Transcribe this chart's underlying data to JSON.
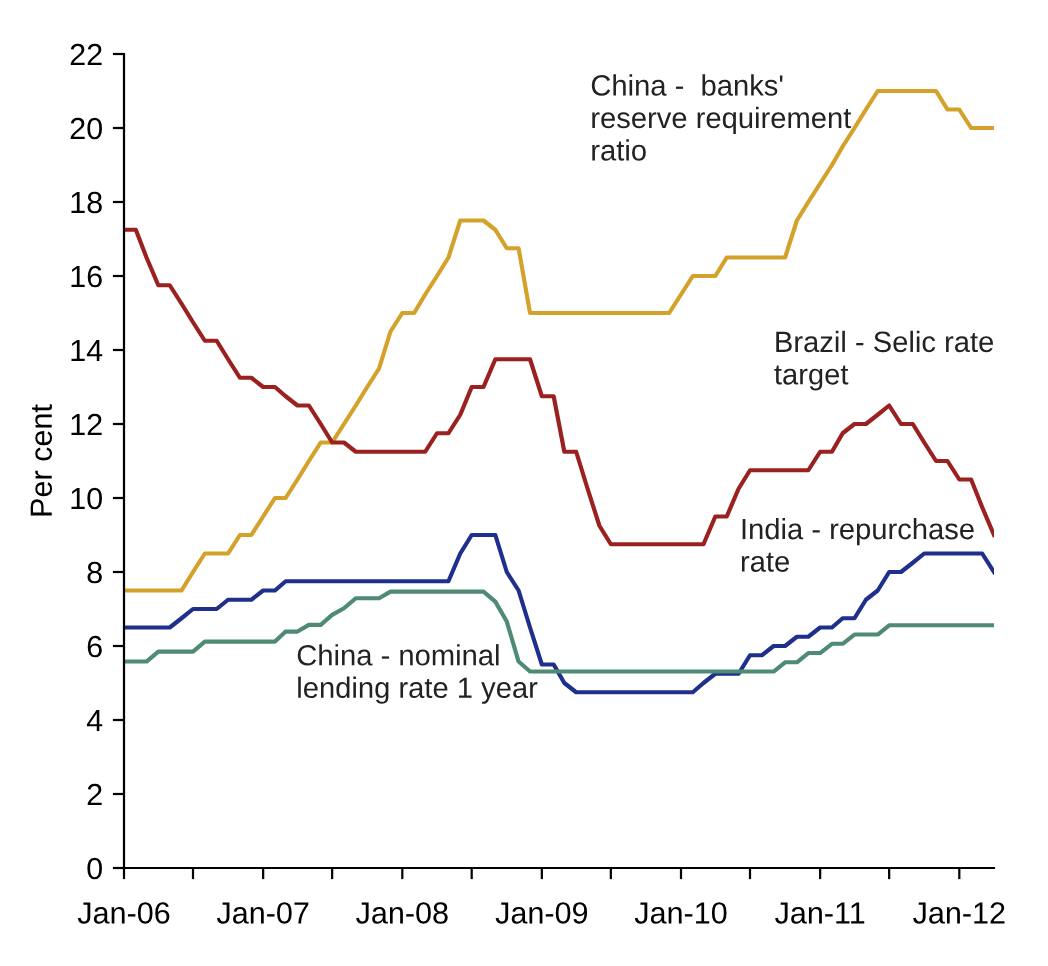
{
  "chart_data": {
    "type": "line",
    "ylabel": "Per cent",
    "x": [
      "2006-01",
      "2006-02",
      "2006-03",
      "2006-04",
      "2006-05",
      "2006-06",
      "2006-07",
      "2006-08",
      "2006-09",
      "2006-10",
      "2006-11",
      "2006-12",
      "2007-01",
      "2007-02",
      "2007-03",
      "2007-04",
      "2007-05",
      "2007-06",
      "2007-07",
      "2007-08",
      "2007-09",
      "2007-10",
      "2007-11",
      "2007-12",
      "2008-01",
      "2008-02",
      "2008-03",
      "2008-04",
      "2008-05",
      "2008-06",
      "2008-07",
      "2008-08",
      "2008-09",
      "2008-10",
      "2008-11",
      "2008-12",
      "2009-01",
      "2009-02",
      "2009-03",
      "2009-04",
      "2009-05",
      "2009-06",
      "2009-07",
      "2009-08",
      "2009-09",
      "2009-10",
      "2009-11",
      "2009-12",
      "2010-01",
      "2010-02",
      "2010-03",
      "2010-04",
      "2010-05",
      "2010-06",
      "2010-07",
      "2010-08",
      "2010-09",
      "2010-10",
      "2010-11",
      "2010-12",
      "2011-01",
      "2011-02",
      "2011-03",
      "2011-04",
      "2011-05",
      "2011-06",
      "2011-07",
      "2011-08",
      "2011-09",
      "2011-10",
      "2011-11",
      "2011-12",
      "2012-01",
      "2012-02",
      "2012-03",
      "2012-04"
    ],
    "series": [
      {
        "name": "China -  banks'\nreserve requirement\nratio",
        "color": "#d4a12a",
        "values": [
          7.5,
          7.5,
          7.5,
          7.5,
          7.5,
          7.5,
          8.0,
          8.5,
          8.5,
          8.5,
          9.0,
          9.0,
          9.5,
          10.0,
          10.0,
          10.5,
          11.0,
          11.5,
          11.5,
          12.0,
          12.5,
          13.0,
          13.5,
          14.5,
          15.0,
          15.0,
          15.5,
          16.0,
          16.5,
          17.5,
          17.5,
          17.5,
          17.25,
          16.75,
          16.75,
          15.0,
          15.0,
          15.0,
          15.0,
          15.0,
          15.0,
          15.0,
          15.0,
          15.0,
          15.0,
          15.0,
          15.0,
          15.0,
          15.5,
          16.0,
          16.0,
          16.0,
          16.5,
          16.5,
          16.5,
          16.5,
          16.5,
          16.5,
          17.5,
          18.0,
          18.5,
          19.0,
          19.5,
          20.0,
          20.5,
          21.0,
          21.0,
          21.0,
          21.0,
          21.0,
          21.0,
          20.5,
          20.5,
          20.0,
          20.0,
          20.0
        ]
      },
      {
        "name": "Brazil - Selic rate\ntarget",
        "color": "#9b2020",
        "values": [
          17.25,
          17.25,
          16.5,
          15.75,
          15.75,
          15.25,
          14.75,
          14.25,
          14.25,
          13.75,
          13.25,
          13.25,
          13.0,
          13.0,
          12.75,
          12.5,
          12.5,
          12.0,
          11.5,
          11.5,
          11.25,
          11.25,
          11.25,
          11.25,
          11.25,
          11.25,
          11.25,
          11.75,
          11.75,
          12.25,
          13.0,
          13.0,
          13.75,
          13.75,
          13.75,
          13.75,
          12.75,
          12.75,
          11.25,
          11.25,
          10.25,
          9.25,
          8.75,
          8.75,
          8.75,
          8.75,
          8.75,
          8.75,
          8.75,
          8.75,
          8.75,
          9.5,
          9.5,
          10.25,
          10.75,
          10.75,
          10.75,
          10.75,
          10.75,
          10.75,
          11.25,
          11.25,
          11.75,
          12.0,
          12.0,
          12.25,
          12.5,
          12.0,
          12.0,
          11.5,
          11.0,
          11.0,
          10.5,
          10.5,
          9.75,
          9.0
        ]
      },
      {
        "name": "India - repurchase\nrate",
        "color": "#1f2f8c",
        "values": [
          6.5,
          6.5,
          6.5,
          6.5,
          6.5,
          6.75,
          7.0,
          7.0,
          7.0,
          7.25,
          7.25,
          7.25,
          7.5,
          7.5,
          7.75,
          7.75,
          7.75,
          7.75,
          7.75,
          7.75,
          7.75,
          7.75,
          7.75,
          7.75,
          7.75,
          7.75,
          7.75,
          7.75,
          7.75,
          8.5,
          9.0,
          9.0,
          9.0,
          8.0,
          7.5,
          6.5,
          5.5,
          5.5,
          5.0,
          4.75,
          4.75,
          4.75,
          4.75,
          4.75,
          4.75,
          4.75,
          4.75,
          4.75,
          4.75,
          4.75,
          5.0,
          5.25,
          5.25,
          5.25,
          5.75,
          5.75,
          6.0,
          6.0,
          6.25,
          6.25,
          6.5,
          6.5,
          6.75,
          6.75,
          7.25,
          7.5,
          8.0,
          8.0,
          8.25,
          8.5,
          8.5,
          8.5,
          8.5,
          8.5,
          8.5,
          8.0
        ]
      },
      {
        "name": "China - nominal\nlending rate 1 year",
        "color": "#4f8a72",
        "values": [
          5.58,
          5.58,
          5.58,
          5.85,
          5.85,
          5.85,
          5.85,
          6.12,
          6.12,
          6.12,
          6.12,
          6.12,
          6.12,
          6.12,
          6.39,
          6.39,
          6.57,
          6.57,
          6.84,
          7.02,
          7.29,
          7.29,
          7.29,
          7.47,
          7.47,
          7.47,
          7.47,
          7.47,
          7.47,
          7.47,
          7.47,
          7.47,
          7.2,
          6.66,
          5.58,
          5.31,
          5.31,
          5.31,
          5.31,
          5.31,
          5.31,
          5.31,
          5.31,
          5.31,
          5.31,
          5.31,
          5.31,
          5.31,
          5.31,
          5.31,
          5.31,
          5.31,
          5.31,
          5.31,
          5.31,
          5.31,
          5.31,
          5.56,
          5.56,
          5.81,
          5.81,
          6.06,
          6.06,
          6.31,
          6.31,
          6.31,
          6.56,
          6.56,
          6.56,
          6.56,
          6.56,
          6.56,
          6.56,
          6.56,
          6.56,
          6.56
        ]
      }
    ],
    "xlim": [
      "2006-01",
      "2012-04"
    ],
    "xticks": [
      {
        "value": "2006-01",
        "label": "Jan-06"
      },
      {
        "value": "2006-07",
        "label": null
      },
      {
        "value": "2007-01",
        "label": "Jan-07"
      },
      {
        "value": "2007-07",
        "label": null
      },
      {
        "value": "2008-01",
        "label": "Jan-08"
      },
      {
        "value": "2008-07",
        "label": null
      },
      {
        "value": "2009-01",
        "label": "Jan-09"
      },
      {
        "value": "2009-07",
        "label": null
      },
      {
        "value": "2010-01",
        "label": "Jan-10"
      },
      {
        "value": "2010-07",
        "label": null
      },
      {
        "value": "2011-01",
        "label": "Jan-11"
      },
      {
        "value": "2011-07",
        "label": null
      },
      {
        "value": "2012-01",
        "label": "Jan-12"
      }
    ],
    "ylim": [
      0,
      22
    ],
    "yticks": [
      0,
      2,
      4,
      6,
      8,
      10,
      12,
      14,
      16,
      18,
      20,
      22
    ],
    "grid": false,
    "legend": false,
    "marker": "none",
    "line_style": "solid"
  }
}
